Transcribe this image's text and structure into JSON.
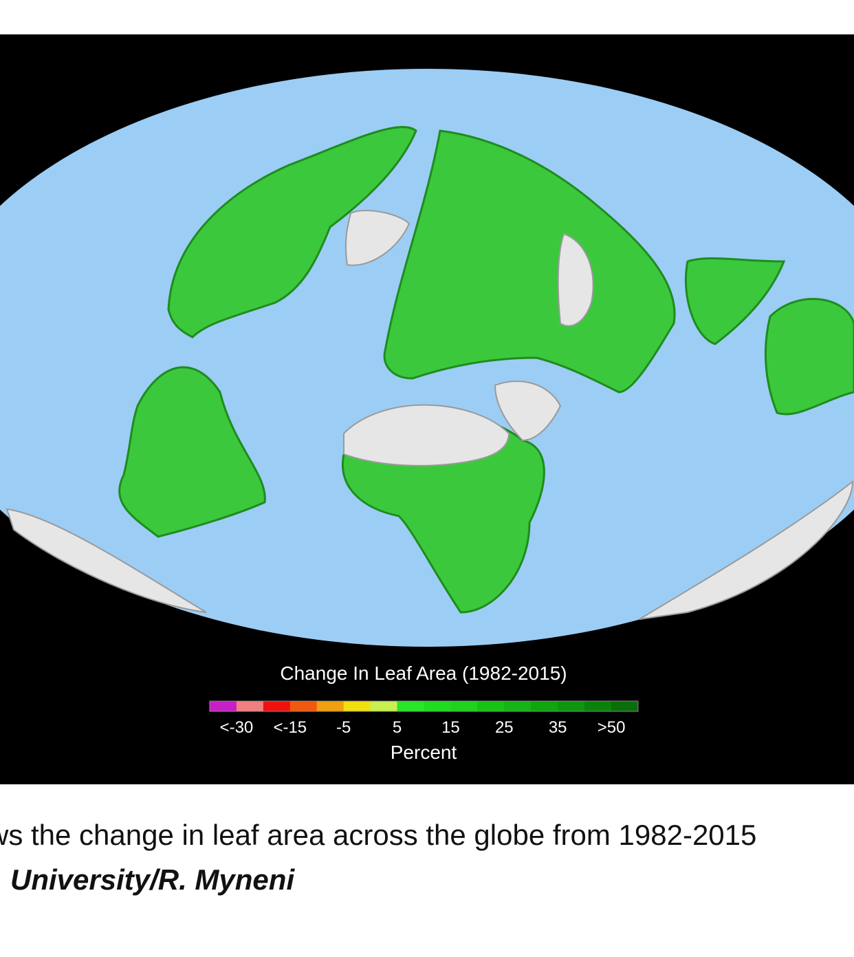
{
  "map": {
    "legend": {
      "title": "Change In Leaf Area (1982-2015)",
      "colors": [
        "#c81ec8",
        "#f08080",
        "#f01010",
        "#f05a10",
        "#f0a010",
        "#f0e010",
        "#c8f050",
        "#28e628",
        "#1edc1e",
        "#1ed21e",
        "#14c314",
        "#14b414",
        "#0fa50f",
        "#0f960f",
        "#0a820a",
        "#0a6e0a"
      ],
      "ticks": [
        "<-30",
        "<-15",
        "-5",
        "5",
        "15",
        "25",
        "35",
        ">50"
      ],
      "unit": "Percent"
    }
  },
  "caption": {
    "line1": "ws the change in leaf area across the globe from 1982-2015",
    "credit": "University/R. Myneni"
  }
}
